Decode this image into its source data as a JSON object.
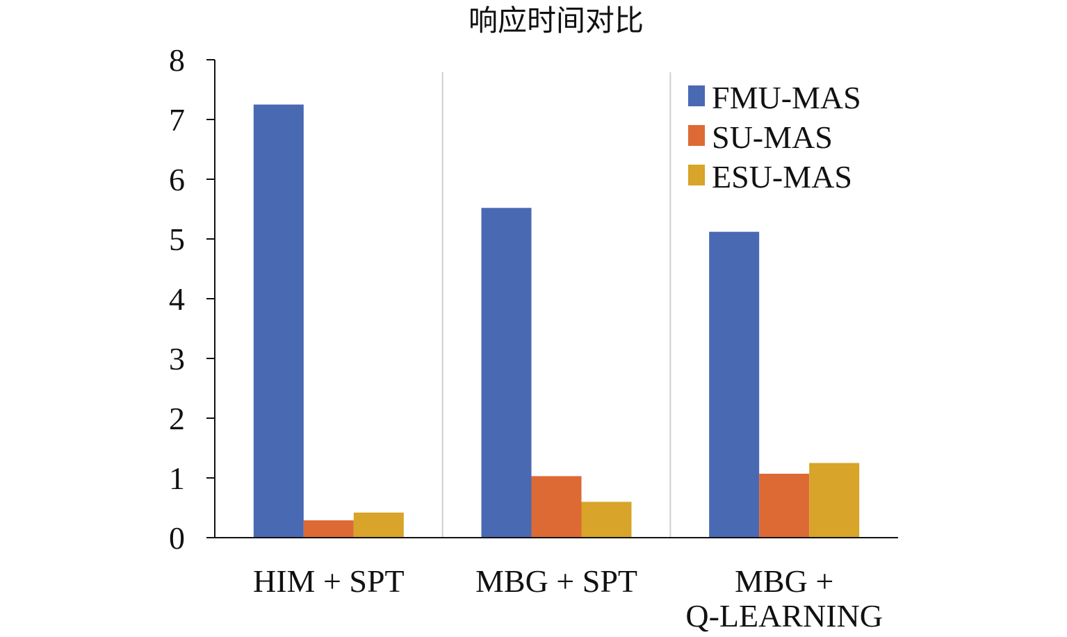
{
  "chart_data": {
    "type": "bar",
    "title": "响应时间对比",
    "xlabel": "",
    "ylabel": "",
    "categories": [
      [
        "HIM + SPT"
      ],
      [
        "MBG + SPT"
      ],
      [
        "MBG +",
        "Q-LEARNING"
      ]
    ],
    "series": [
      {
        "name": "FMU-MAS",
        "color": "#4a69b3",
        "values": [
          7.25,
          5.52,
          5.12
        ]
      },
      {
        "name": "SU-MAS",
        "color": "#dd6a34",
        "values": [
          0.29,
          1.03,
          1.07
        ]
      },
      {
        "name": "ESU-MAS",
        "color": "#d8a429",
        "values": [
          0.42,
          0.6,
          1.25
        ]
      }
    ],
    "ylim": [
      0,
      8
    ],
    "yticks": [
      0,
      1,
      2,
      3,
      4,
      5,
      6,
      7,
      8
    ],
    "grid": false,
    "group_separators": true,
    "legend_position": "top-right"
  }
}
